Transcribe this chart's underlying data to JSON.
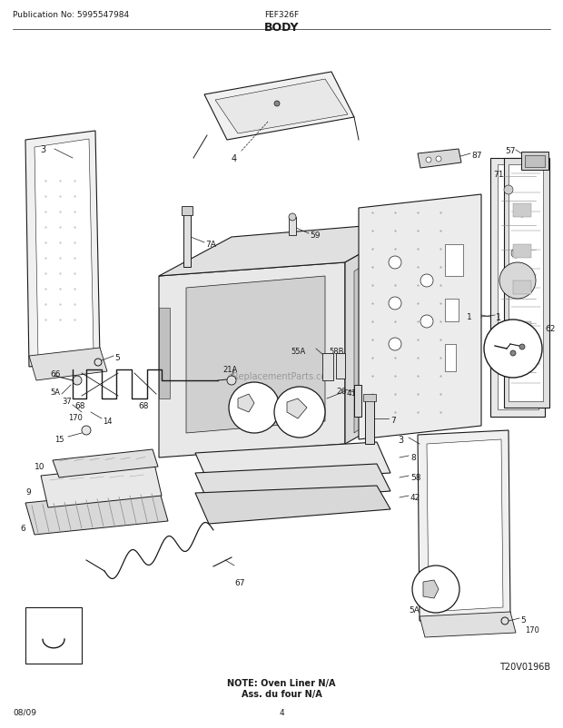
{
  "title": "BODY",
  "pub_no": "Publication No: 5995547984",
  "model": "FEF326F",
  "date": "08/09",
  "page": "4",
  "diagram_id": "T20V0196B",
  "note_line1": "NOTE: Oven Liner N/A",
  "note_line2": "Ass. du four N/A",
  "watermark": "eReplacementParts.com",
  "bg_color": "#ffffff",
  "lc": "#1a1a1a",
  "fig_width": 6.2,
  "fig_height": 8.03,
  "dpi": 100
}
